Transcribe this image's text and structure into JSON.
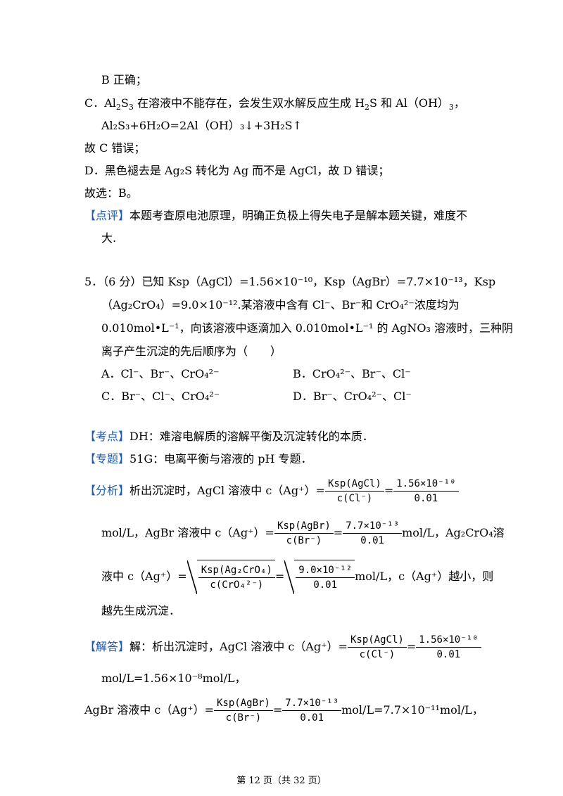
{
  "prev": {
    "b_correct": "B 正确；",
    "c_line1_a": "C．Al",
    "c_line1_sub1": "2",
    "c_line1_b": "S",
    "c_line1_sub2": "3",
    "c_line1_c": " 在溶液中不能存在，会发生双水解反应生成 H",
    "c_line1_sub3": "2",
    "c_line1_d": "S 和 Al（OH）",
    "c_line1_sub4": "3",
    "c_line1_e": "，",
    "c_eq": "Al₂S₃+6H₂O=2Al（OH）₃↓+3H₂S↑",
    "c_wrong": "故 C 错误；",
    "d_text": "D．黑色褪去是 Ag₂S 转化为 Ag 而不是 AgCl，故 D 错误；",
    "choose": "故选：B。",
    "comment_tag": "【点评】",
    "comment_text1": "本题考查原电池原理，明确正负极上得失电子是解本题关键，难度不",
    "comment_text2": "大."
  },
  "q5": {
    "line1": "5．（6 分）已知 Ksp（AgCl）=1.56×10⁻¹⁰，Ksp（AgBr）=7.7×10⁻¹³，Ksp",
    "line2": "（Ag₂CrO₄）=9.0×10⁻¹².某溶液中含有 Cl⁻、Br⁻和 CrO₄²⁻浓度均为",
    "line3": "0.010mol•L⁻¹，向该溶液中逐滴加入 0.010mol•L⁻¹ 的 AgNO₃ 溶液时，三种阴",
    "line4": "离子产生沉淀的先后顺序为（　　）",
    "optA": "A．Cl⁻、Br⁻、CrO₄²⁻",
    "optB": "B．CrO₄²⁻、Br⁻、Cl⁻",
    "optC": "C．Br⁻、Cl⁻、CrO₄²⁻",
    "optD": "D．Br⁻、CrO₄²⁻、Cl⁻"
  },
  "analysis": {
    "kaodian_tag": "【考点】",
    "kaodian": "DH：难溶电解质的溶解平衡及沉淀转化的本质．",
    "zhuanti_tag": "【专题】",
    "zhuanti": "51G：电离平衡与溶液的 pH 专题．",
    "fenxi_tag": "【分析】",
    "fenxi_1": "析出沉淀时，AgCl 溶液中 c（Ag⁺）=",
    "f1_num": "Ksp(AgCl)",
    "f1_den": "c(Cl⁻)",
    "f1_eq": "=",
    "f1b_num": "1.56×10⁻¹⁰",
    "f1b_den": "0.01",
    "fenxi_2a": "mol/L，AgBr 溶液中 c（Ag⁺）=",
    "f2_num": "Ksp(AgBr)",
    "f2_den": "c(Br⁻)",
    "f2b_num": "7.7×10⁻¹³",
    "f2b_den": "0.01",
    "fenxi_2b": "mol/L，Ag₂CrO₄溶",
    "fenxi_3a": "液中 c（Ag⁺）=",
    "f3_num": "Ksp(Ag₂CrO₄)",
    "f3_den": "c(CrO₄²⁻)",
    "f3b_num": "9.0×10⁻¹²",
    "f3b_den": "0.01",
    "fenxi_3b": "mol/L，c（Ag⁺）越小，则",
    "fenxi_4": "越先生成沉淀．",
    "jieda_tag": "【解答】",
    "jieda_1": "解：析出沉淀时，AgCl 溶液中 c（Ag⁺）=",
    "jieda_2": "mol/L=1.56×10⁻⁸mol/L，",
    "jieda_3a": "AgBr 溶液中 c（Ag⁺）=",
    "jieda_3b": "mol/L=7.7×10⁻¹¹mol/L，"
  },
  "footer": "第 12 页（共 32 页）"
}
